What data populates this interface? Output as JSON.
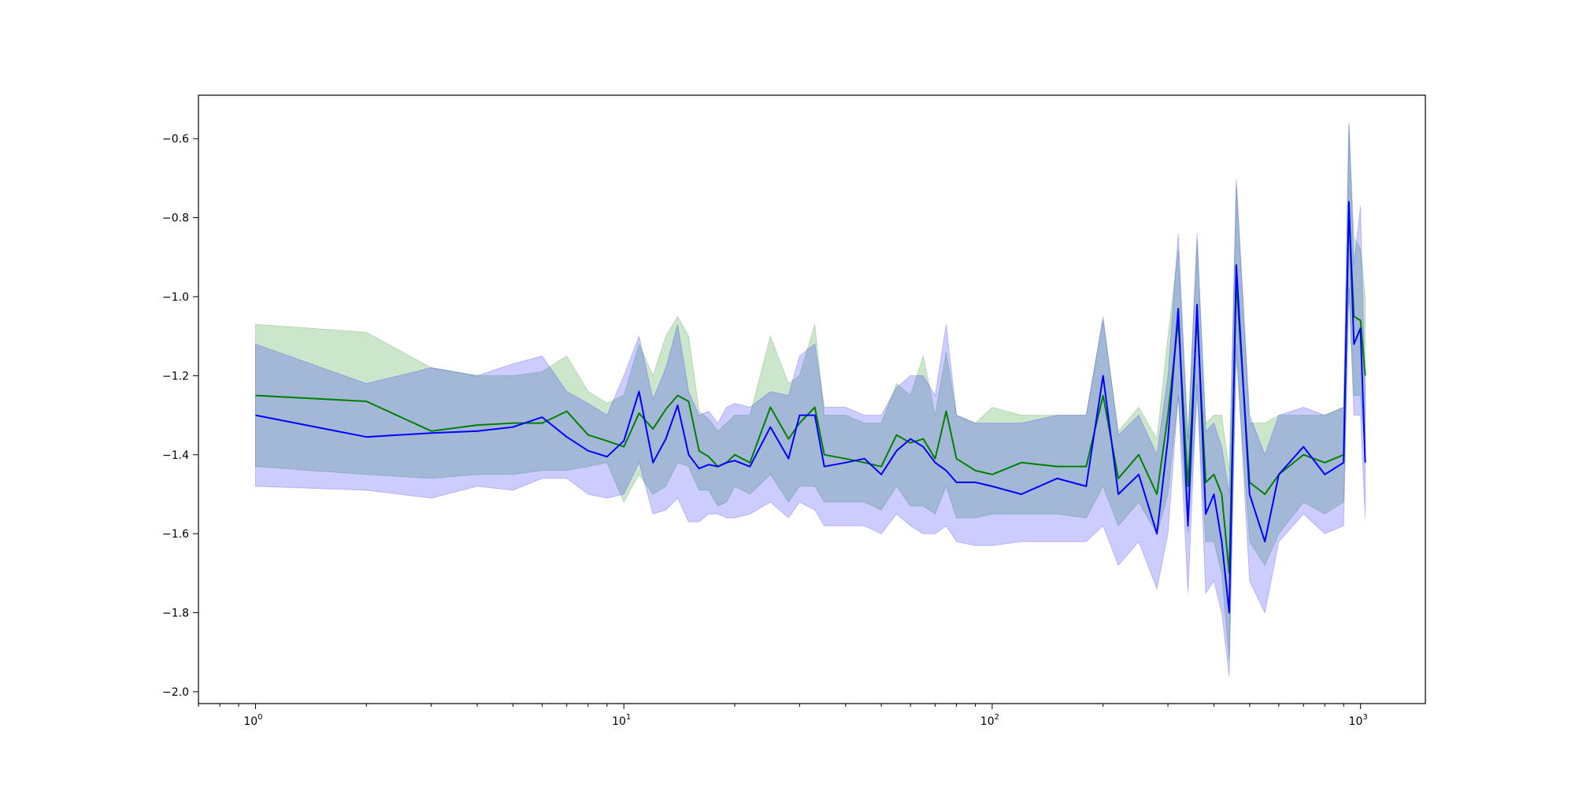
{
  "chart_data": {
    "type": "line",
    "title": "",
    "xlabel": "",
    "ylabel": "",
    "xscale": "log",
    "xlim": [
      0.7,
      1500
    ],
    "ylim": [
      -2.03,
      -0.49
    ],
    "grid": false,
    "legend": "none",
    "x_ticks": [
      {
        "value": 1,
        "base": "10",
        "exp": "0"
      },
      {
        "value": 10,
        "base": "10",
        "exp": "1"
      },
      {
        "value": 100,
        "base": "10",
        "exp": "2"
      },
      {
        "value": 1000,
        "base": "10",
        "exp": "3"
      }
    ],
    "y_ticks": [
      {
        "value": -0.6,
        "label": "−0.6"
      },
      {
        "value": -0.8,
        "label": "−0.8"
      },
      {
        "value": -1.0,
        "label": "−1.0"
      },
      {
        "value": -1.2,
        "label": "−1.2"
      },
      {
        "value": -1.4,
        "label": "−1.4"
      },
      {
        "value": -1.6,
        "label": "−1.6"
      },
      {
        "value": -1.8,
        "label": "−1.8"
      },
      {
        "value": -2.0,
        "label": "−2.0"
      }
    ],
    "series": [
      {
        "color": "#008000",
        "band_color": "#008000",
        "x": [
          1,
          2,
          3,
          4,
          5,
          6,
          7,
          8,
          9,
          10,
          11,
          12,
          13,
          14,
          15,
          16,
          17,
          18,
          19,
          20,
          22,
          25,
          28,
          30,
          33,
          35,
          40,
          45,
          50,
          55,
          60,
          65,
          70,
          75,
          80,
          90,
          100,
          120,
          150,
          180,
          200,
          220,
          250,
          280,
          300,
          320,
          340,
          360,
          380,
          400,
          420,
          440,
          460,
          500,
          550,
          600,
          700,
          800,
          900,
          930,
          960,
          1000,
          1030
        ],
        "y": [
          -1.25,
          -1.265,
          -1.34,
          -1.325,
          -1.32,
          -1.32,
          -1.29,
          -1.35,
          -1.365,
          -1.38,
          -1.295,
          -1.335,
          -1.285,
          -1.25,
          -1.265,
          -1.39,
          -1.405,
          -1.43,
          -1.42,
          -1.4,
          -1.42,
          -1.28,
          -1.36,
          -1.32,
          -1.28,
          -1.4,
          -1.41,
          -1.42,
          -1.43,
          -1.35,
          -1.37,
          -1.36,
          -1.41,
          -1.29,
          -1.41,
          -1.44,
          -1.45,
          -1.42,
          -1.43,
          -1.43,
          -1.25,
          -1.46,
          -1.4,
          -1.5,
          -1.3,
          -1.06,
          -1.48,
          -1.05,
          -1.47,
          -1.45,
          -1.5,
          -1.7,
          -0.96,
          -1.47,
          -1.5,
          -1.45,
          -1.4,
          -1.42,
          -1.4,
          -0.78,
          -1.05,
          -1.06,
          -1.2
        ],
        "lower": [
          -1.43,
          -1.45,
          -1.46,
          -1.45,
          -1.45,
          -1.44,
          -1.44,
          -1.43,
          -1.42,
          -1.52,
          -1.45,
          -1.5,
          -1.48,
          -1.42,
          -1.43,
          -1.49,
          -1.49,
          -1.53,
          -1.52,
          -1.48,
          -1.5,
          -1.45,
          -1.52,
          -1.48,
          -1.48,
          -1.52,
          -1.52,
          -1.52,
          -1.54,
          -1.48,
          -1.53,
          -1.53,
          -1.55,
          -1.48,
          -1.56,
          -1.56,
          -1.55,
          -1.55,
          -1.55,
          -1.56,
          -1.48,
          -1.58,
          -1.52,
          -1.6,
          -1.5,
          -1.25,
          -1.6,
          -1.25,
          -1.62,
          -1.62,
          -1.7,
          -1.92,
          -1.15,
          -1.62,
          -1.68,
          -1.6,
          -1.52,
          -1.55,
          -1.52,
          -0.98,
          -1.25,
          -1.25,
          -1.4
        ],
        "upper": [
          -1.07,
          -1.09,
          -1.18,
          -1.2,
          -1.2,
          -1.19,
          -1.15,
          -1.24,
          -1.27,
          -1.25,
          -1.12,
          -1.2,
          -1.1,
          -1.05,
          -1.1,
          -1.29,
          -1.31,
          -1.34,
          -1.32,
          -1.3,
          -1.3,
          -1.1,
          -1.22,
          -1.2,
          -1.07,
          -1.3,
          -1.3,
          -1.32,
          -1.32,
          -1.22,
          -1.25,
          -1.15,
          -1.3,
          -1.14,
          -1.3,
          -1.32,
          -1.28,
          -1.3,
          -1.3,
          -1.3,
          -1.06,
          -1.34,
          -1.28,
          -1.36,
          -1.1,
          -0.88,
          -1.36,
          -0.86,
          -1.32,
          -1.3,
          -1.3,
          -1.44,
          -0.72,
          -1.32,
          -1.32,
          -1.3,
          -1.3,
          -1.3,
          -1.28,
          -0.56,
          -0.85,
          -0.88,
          -1.0
        ]
      },
      {
        "color": "#0000ff",
        "band_color": "#0000ff",
        "x": [
          1,
          2,
          3,
          4,
          5,
          6,
          7,
          8,
          9,
          10,
          11,
          12,
          13,
          14,
          15,
          16,
          17,
          18,
          19,
          20,
          22,
          25,
          28,
          30,
          33,
          35,
          40,
          45,
          50,
          55,
          60,
          65,
          70,
          75,
          80,
          90,
          100,
          120,
          150,
          180,
          200,
          220,
          250,
          280,
          300,
          320,
          340,
          360,
          380,
          400,
          420,
          440,
          460,
          500,
          550,
          600,
          700,
          800,
          900,
          930,
          960,
          1000,
          1030
        ],
        "y": [
          -1.3,
          -1.355,
          -1.345,
          -1.34,
          -1.33,
          -1.305,
          -1.355,
          -1.39,
          -1.405,
          -1.365,
          -1.24,
          -1.42,
          -1.36,
          -1.275,
          -1.4,
          -1.435,
          -1.425,
          -1.43,
          -1.42,
          -1.415,
          -1.43,
          -1.33,
          -1.41,
          -1.3,
          -1.3,
          -1.43,
          -1.42,
          -1.41,
          -1.45,
          -1.39,
          -1.36,
          -1.38,
          -1.42,
          -1.44,
          -1.47,
          -1.47,
          -1.48,
          -1.5,
          -1.46,
          -1.48,
          -1.2,
          -1.5,
          -1.45,
          -1.6,
          -1.36,
          -1.03,
          -1.58,
          -1.02,
          -1.55,
          -1.5,
          -1.62,
          -1.8,
          -0.92,
          -1.5,
          -1.62,
          -1.45,
          -1.38,
          -1.45,
          -1.42,
          -0.76,
          -1.12,
          -1.08,
          -1.42
        ],
        "lower": [
          -1.48,
          -1.49,
          -1.51,
          -1.48,
          -1.49,
          -1.46,
          -1.46,
          -1.5,
          -1.51,
          -1.5,
          -1.42,
          -1.55,
          -1.54,
          -1.51,
          -1.57,
          -1.57,
          -1.55,
          -1.55,
          -1.56,
          -1.56,
          -1.55,
          -1.52,
          -1.56,
          -1.52,
          -1.54,
          -1.58,
          -1.58,
          -1.58,
          -1.6,
          -1.55,
          -1.58,
          -1.6,
          -1.6,
          -1.58,
          -1.62,
          -1.63,
          -1.63,
          -1.62,
          -1.62,
          -1.62,
          -1.58,
          -1.68,
          -1.62,
          -1.74,
          -1.6,
          -1.25,
          -1.75,
          -1.22,
          -1.75,
          -1.72,
          -1.8,
          -1.96,
          -1.12,
          -1.72,
          -1.8,
          -1.62,
          -1.55,
          -1.6,
          -1.58,
          -0.98,
          -1.3,
          -1.3,
          -1.56
        ],
        "upper": [
          -1.12,
          -1.22,
          -1.18,
          -1.2,
          -1.17,
          -1.15,
          -1.24,
          -1.27,
          -1.3,
          -1.2,
          -1.1,
          -1.26,
          -1.18,
          -1.07,
          -1.24,
          -1.3,
          -1.29,
          -1.32,
          -1.28,
          -1.27,
          -1.28,
          -1.24,
          -1.25,
          -1.15,
          -1.12,
          -1.28,
          -1.28,
          -1.3,
          -1.3,
          -1.23,
          -1.2,
          -1.2,
          -1.25,
          -1.07,
          -1.3,
          -1.32,
          -1.32,
          -1.32,
          -1.3,
          -1.3,
          -1.05,
          -1.35,
          -1.3,
          -1.4,
          -1.2,
          -0.84,
          -1.36,
          -0.84,
          -1.34,
          -1.32,
          -1.38,
          -1.5,
          -0.7,
          -1.3,
          -1.4,
          -1.3,
          -1.28,
          -1.3,
          -1.28,
          -0.56,
          -0.92,
          -0.77,
          -1.25
        ]
      }
    ]
  }
}
